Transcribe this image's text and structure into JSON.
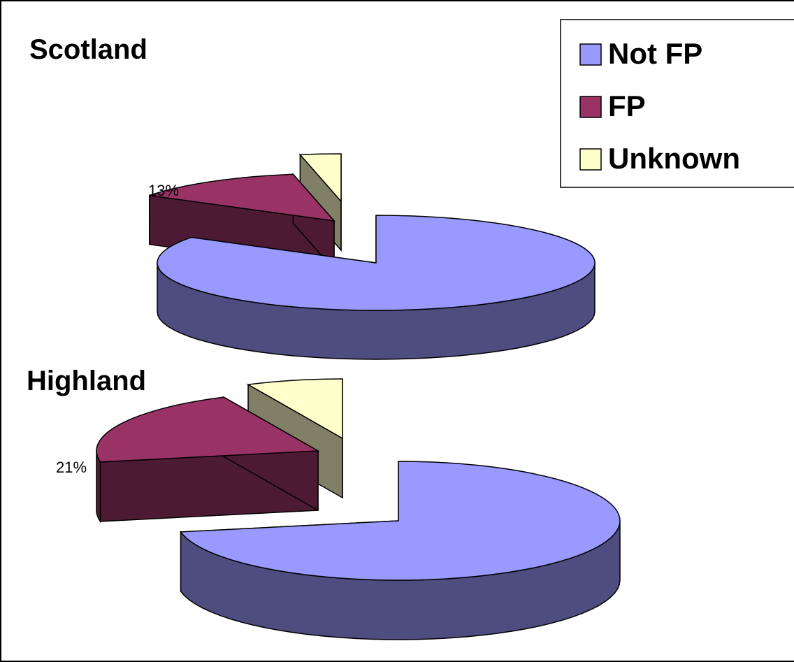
{
  "chart_data": [
    {
      "type": "pie",
      "title": "Scotland",
      "categories": [
        "Not FP",
        "FP",
        "Unknown"
      ],
      "values": [
        84,
        13,
        3
      ],
      "data_labels": [
        "",
        "13%",
        ""
      ],
      "colors": [
        "#9999FF",
        "#993366",
        "#FFFFCC"
      ],
      "style": "3d-exploded"
    },
    {
      "type": "pie",
      "title": "Highland",
      "categories": [
        "Not FP",
        "FP",
        "Unknown"
      ],
      "values": [
        72,
        21,
        7
      ],
      "data_labels": [
        "",
        "21%",
        ""
      ],
      "colors": [
        "#9999FF",
        "#993366",
        "#FFFFCC"
      ],
      "style": "3d-exploded"
    }
  ],
  "legend": {
    "position": "top-right",
    "items": [
      {
        "label": "Not FP",
        "color": "#9999FF"
      },
      {
        "label": "FP",
        "color": "#993366"
      },
      {
        "label": "Unknown",
        "color": "#FFFFCC"
      }
    ]
  }
}
